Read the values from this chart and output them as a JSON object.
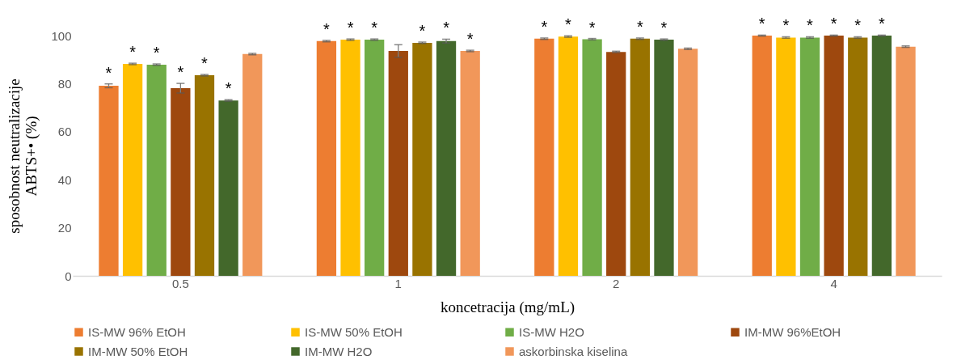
{
  "chart_data": {
    "type": "bar",
    "xlabel": "koncetracija (mg/mL)",
    "ylabel": "sposobnost neutralizacije\nABTS+• (%)",
    "categories": [
      "0.5",
      "1",
      "2",
      "4"
    ],
    "ylim": [
      0,
      100
    ],
    "yticks": [
      0,
      20,
      40,
      60,
      80,
      100
    ],
    "grid": false,
    "legend": "bottom",
    "series": [
      {
        "name": "IS-MW 96% EtOH",
        "color": "#ed7d31",
        "values": [
          79.1,
          97.7,
          98.7,
          100
        ],
        "errors": [
          0.8,
          0.3,
          0.3,
          0.2
        ],
        "value_labels": [
          "*",
          "*",
          "*",
          "*"
        ]
      },
      {
        "name": "IS-MW 50% EtOH",
        "color": "#ffc000",
        "values": [
          88.2,
          98.3,
          99.6,
          99.2
        ],
        "errors": [
          0.3,
          0.3,
          0.3,
          0.3
        ],
        "value_labels": [
          "*",
          "*",
          "*",
          "*"
        ]
      },
      {
        "name": "IS-MW H2O",
        "color": "#70ad47",
        "values": [
          87.9,
          98.3,
          98.5,
          99.2
        ],
        "errors": [
          0.3,
          0.3,
          0.3,
          0.3
        ],
        "value_labels": [
          "*",
          "*",
          "*",
          "*"
        ]
      },
      {
        "name": "IM-MW 96%EtOH",
        "color": "#9e480e",
        "values": [
          78.1,
          93.6,
          93.2,
          100
        ],
        "errors": [
          2,
          2.6,
          0.3,
          0.2
        ],
        "value_labels": [
          "*",
          null,
          null,
          "*"
        ]
      },
      {
        "name": "IM-MW 50% EtOH",
        "color": "#997300",
        "values": [
          83.5,
          97,
          98.7,
          99.2
        ],
        "errors": [
          0.3,
          0.3,
          0.3,
          0.3
        ],
        "value_labels": [
          "*",
          "*",
          "*",
          "*"
        ]
      },
      {
        "name": "IM-MW H2O",
        "color": "#43682b",
        "values": [
          73,
          97.7,
          98.3,
          100
        ],
        "errors": [
          0.3,
          0.8,
          0.3,
          0.2
        ],
        "value_labels": [
          "*",
          "*",
          "*",
          "*"
        ]
      },
      {
        "name": "askorbinska kiselina",
        "color": "#f1975a",
        "values": [
          92.3,
          93.6,
          94.5,
          95.4
        ],
        "errors": [
          0.3,
          0.3,
          0.3,
          0.3
        ],
        "value_labels": [
          null,
          "*",
          null,
          null
        ]
      }
    ]
  }
}
